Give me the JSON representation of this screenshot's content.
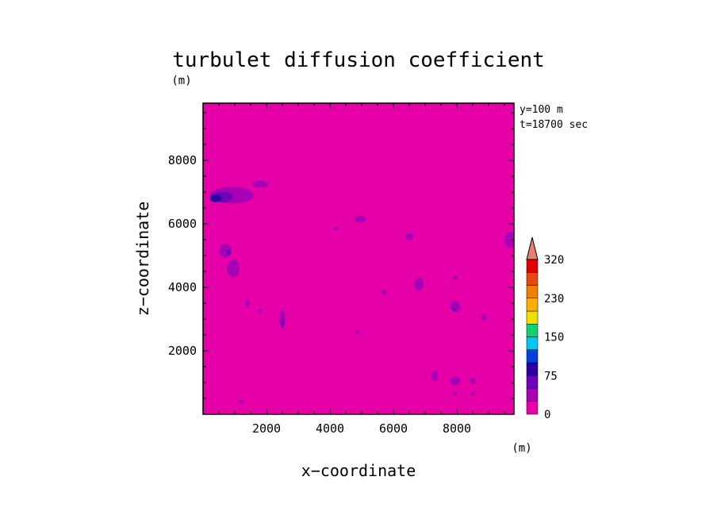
{
  "chart_data": {
    "type": "heatmap",
    "title": "turbulet diffusion coefficient",
    "xlabel": "x−coordinate",
    "ylabel": "z−coordinate",
    "x_unit": "(m)",
    "y_unit": "(m)",
    "annotations": [
      "y=100 m",
      "t=18700 sec"
    ],
    "xlim": [
      0,
      9800
    ],
    "ylim": [
      0,
      9800
    ],
    "x_ticks": [
      2000,
      4000,
      6000,
      8000
    ],
    "y_ticks": [
      2000,
      4000,
      6000,
      8000
    ],
    "x_tick_labels": [
      "2000",
      "4000",
      "6000",
      "8000"
    ],
    "y_tick_labels": [
      "2000",
      "4000",
      "6000",
      "8000"
    ],
    "background_color": "#e600a8",
    "colorbar": {
      "levels": [
        0,
        25,
        50,
        75,
        100,
        125,
        150,
        175,
        200,
        230,
        260,
        290,
        320
      ],
      "labels": [
        "0",
        "75",
        "150",
        "230",
        "320"
      ],
      "colors": [
        "#e600a8",
        "#a800b4",
        "#7000b8",
        "#2a00a0",
        "#0040e0",
        "#00c8f0",
        "#10d070",
        "#f0e000",
        "#f8b000",
        "#f08000",
        "#e84810",
        "#e00000"
      ],
      "extend_color": "#e88070"
    },
    "regions": [
      {
        "x": 900,
        "z": 6900,
        "rx": 700,
        "rz": 260,
        "level": 1
      },
      {
        "x": 600,
        "z": 6850,
        "rx": 330,
        "rz": 170,
        "level": 2
      },
      {
        "x": 400,
        "z": 6800,
        "rx": 180,
        "rz": 120,
        "level": 3
      },
      {
        "x": 1800,
        "z": 7250,
        "rx": 250,
        "rz": 110,
        "level": 1
      },
      {
        "x": 700,
        "z": 5150,
        "rx": 200,
        "rz": 220,
        "level": 1
      },
      {
        "x": 800,
        "z": 5100,
        "rx": 80,
        "rz": 80,
        "level": 2
      },
      {
        "x": 950,
        "z": 4600,
        "rx": 200,
        "rz": 280,
        "level": 1
      },
      {
        "x": 2500,
        "z": 3000,
        "rx": 90,
        "rz": 300,
        "level": 1
      },
      {
        "x": 2500,
        "z": 2850,
        "rx": 40,
        "rz": 130,
        "level": 2
      },
      {
        "x": 4950,
        "z": 6150,
        "rx": 180,
        "rz": 110,
        "level": 1
      },
      {
        "x": 6500,
        "z": 5600,
        "rx": 130,
        "rz": 120,
        "level": 1
      },
      {
        "x": 6800,
        "z": 4100,
        "rx": 140,
        "rz": 220,
        "level": 1
      },
      {
        "x": 7950,
        "z": 3400,
        "rx": 160,
        "rz": 180,
        "level": 1
      },
      {
        "x": 7900,
        "z": 3300,
        "rx": 60,
        "rz": 60,
        "level": 2
      },
      {
        "x": 7950,
        "z": 1050,
        "rx": 160,
        "rz": 140,
        "level": 1
      },
      {
        "x": 7300,
        "z": 1200,
        "rx": 110,
        "rz": 160,
        "level": 1
      },
      {
        "x": 8500,
        "z": 1050,
        "rx": 90,
        "rz": 100,
        "level": 1
      },
      {
        "x": 8850,
        "z": 3050,
        "rx": 100,
        "rz": 90,
        "level": 1
      },
      {
        "x": 9700,
        "z": 5500,
        "rx": 200,
        "rz": 250,
        "level": 1
      },
      {
        "x": 1400,
        "z": 3500,
        "rx": 70,
        "rz": 120,
        "level": 1
      },
      {
        "x": 7950,
        "z": 650,
        "rx": 70,
        "rz": 60,
        "level": 1
      },
      {
        "x": 8500,
        "z": 650,
        "rx": 70,
        "rz": 60,
        "level": 1
      },
      {
        "x": 1200,
        "z": 400,
        "rx": 80,
        "rz": 70,
        "level": 1
      },
      {
        "x": 1800,
        "z": 3250,
        "rx": 70,
        "rz": 70,
        "level": 1
      },
      {
        "x": 5700,
        "z": 3850,
        "rx": 80,
        "rz": 80,
        "level": 1
      },
      {
        "x": 4850,
        "z": 2600,
        "rx": 60,
        "rz": 70,
        "level": 1
      },
      {
        "x": 4200,
        "z": 5850,
        "rx": 80,
        "rz": 60,
        "level": 1
      },
      {
        "x": 7950,
        "z": 4300,
        "rx": 70,
        "rz": 70,
        "level": 1
      }
    ]
  }
}
